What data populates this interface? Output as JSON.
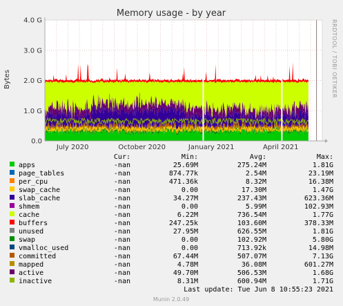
{
  "chart_data": {
    "type": "area",
    "title": "Memory usage - by year",
    "ylabel": "Bytes",
    "side_text": "RRDTOOL / TOBI OETIKER",
    "y_ticks": [
      "0.0",
      "1.0 G",
      "2.0 G",
      "3.0 G",
      "4.0 G"
    ],
    "y_tick_values": [
      0,
      1,
      2,
      3,
      4
    ],
    "ylim": [
      0,
      4
    ],
    "y_unit": "G",
    "x_ticks": [
      "July 2020",
      "October 2020",
      "January 2021",
      "April 2021"
    ],
    "x_tick_pos": [
      1.2,
      4.2,
      7.2,
      10.2
    ],
    "xlim": [
      0,
      12
    ],
    "grid": true,
    "legend_headers": {
      "cur": "Cur:",
      "min": "Min:",
      "avg": "Avg:",
      "max": "Max:"
    },
    "series": [
      {
        "name": "apps",
        "color": "#00cc00",
        "cur": "-nan",
        "min": "25.69M",
        "avg": "275.24M",
        "max": "1.81G",
        "level": 0.275
      },
      {
        "name": "page_tables",
        "color": "#0066b3",
        "cur": "-nan",
        "min": "874.77k",
        "avg": "2.54M",
        "max": "23.19M",
        "level": 0.003
      },
      {
        "name": "per_cpu",
        "color": "#ff8000",
        "cur": "-nan",
        "min": "471.36k",
        "avg": "8.32M",
        "max": "16.38M",
        "level": 0.008
      },
      {
        "name": "swap_cache",
        "color": "#ffcc00",
        "cur": "-nan",
        "min": "0.00",
        "avg": "17.30M",
        "max": "1.47G",
        "level": 0.017
      },
      {
        "name": "slab_cache",
        "color": "#330099",
        "cur": "-nan",
        "min": "34.27M",
        "avg": "237.43M",
        "max": "623.36M",
        "level": 0.237
      },
      {
        "name": "shmem",
        "color": "#990099",
        "cur": "-nan",
        "min": "0.00",
        "avg": "5.99M",
        "max": "102.93M",
        "level": 0.006
      },
      {
        "name": "cache",
        "color": "#ccff00",
        "cur": "-nan",
        "min": "6.22M",
        "avg": "736.54M",
        "max": "1.77G",
        "level": 0.737
      },
      {
        "name": "buffers",
        "color": "#ff0000",
        "cur": "-nan",
        "min": "247.25k",
        "avg": "103.60M",
        "max": "378.33M",
        "level": 0.104
      },
      {
        "name": "unused",
        "color": "#808080",
        "cur": "-nan",
        "min": "27.95M",
        "avg": "626.55M",
        "max": "1.81G",
        "level": 0.627
      },
      {
        "name": "swap",
        "color": "#008f00",
        "cur": "-nan",
        "min": "0.00",
        "avg": "102.92M",
        "max": "5.80G",
        "level": 0.103
      },
      {
        "name": "vmalloc_used",
        "color": "#00487d",
        "cur": "-nan",
        "min": "0.00",
        "avg": "713.92k",
        "max": "14.98M",
        "level": 0.0007
      },
      {
        "name": "committed",
        "color": "#b35a00",
        "cur": "-nan",
        "min": "67.44M",
        "avg": "507.07M",
        "max": "7.13G",
        "level": 0.507
      },
      {
        "name": "mapped",
        "color": "#b38f00",
        "cur": "-nan",
        "min": "4.78M",
        "avg": "36.08M",
        "max": "601.27M",
        "level": 0.036
      },
      {
        "name": "active",
        "color": "#6b006b",
        "cur": "-nan",
        "min": "49.70M",
        "avg": "506.53M",
        "max": "1.68G",
        "level": 0.507
      },
      {
        "name": "inactive",
        "color": "#8fb300",
        "cur": "-nan",
        "min": "8.31M",
        "avg": "600.94M",
        "max": "1.71G",
        "level": 0.601
      }
    ],
    "last_update": "Last update: Tue Jun  8 10:55:23 2021",
    "footer": "Munin 2.0.49"
  }
}
